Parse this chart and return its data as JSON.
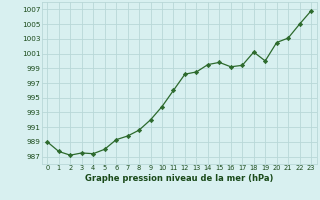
{
  "x": [
    0,
    1,
    2,
    3,
    4,
    5,
    6,
    7,
    8,
    9,
    10,
    11,
    12,
    13,
    14,
    15,
    16,
    17,
    18,
    19,
    20,
    21,
    22,
    23
  ],
  "y": [
    989.0,
    987.7,
    987.2,
    987.5,
    987.4,
    988.0,
    989.3,
    989.8,
    990.6,
    992.0,
    993.8,
    996.0,
    998.2,
    998.5,
    999.5,
    999.8,
    999.2,
    999.4,
    1001.2,
    1000.0,
    1002.5,
    1003.1,
    1005.0,
    1006.8
  ],
  "ylim": [
    986,
    1008
  ],
  "yticks": [
    987,
    989,
    991,
    993,
    995,
    997,
    999,
    1001,
    1003,
    1005,
    1007
  ],
  "xticks": [
    0,
    1,
    2,
    3,
    4,
    5,
    6,
    7,
    8,
    9,
    10,
    11,
    12,
    13,
    14,
    15,
    16,
    17,
    18,
    19,
    20,
    21,
    22,
    23
  ],
  "xlabel": "Graphe pression niveau de la mer (hPa)",
  "line_color": "#2d6a2d",
  "marker": "D",
  "marker_size": 2.2,
  "bg_color": "#d8f0f0",
  "grid_color": "#b8d8d8",
  "tick_color": "#1a4a1a",
  "label_color": "#1a4a1a",
  "xlim": [
    -0.5,
    23.5
  ]
}
